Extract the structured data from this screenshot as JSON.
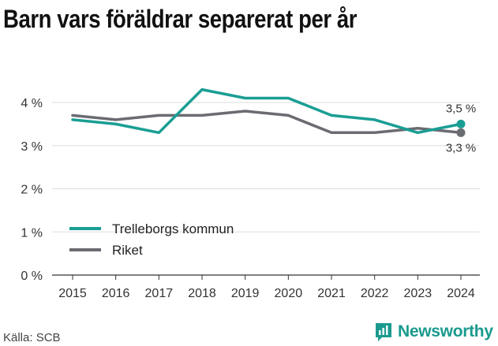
{
  "title": "Barn vars föräldrar separerat per år",
  "source": "Källa: SCB",
  "brand": {
    "name": "Newsworthy",
    "icon": "newsworthy-chart-bubble-icon"
  },
  "colors": {
    "trelleborg": "#1a9e94",
    "riket": "#6b6b72",
    "grid": "#dddddd",
    "brand": "#1a9a8e"
  },
  "chart_data": {
    "type": "line",
    "title": "Barn vars föräldrar separerat per år",
    "xlabel": "",
    "ylabel": "",
    "x": [
      "2015",
      "2016",
      "2017",
      "2018",
      "2019",
      "2020",
      "2021",
      "2022",
      "2023",
      "2024"
    ],
    "ylim": [
      0,
      4
    ],
    "yticks": [
      0,
      1,
      2,
      3,
      4
    ],
    "ytick_labels": [
      "0 %",
      "1 %",
      "2 %",
      "3 %",
      "4 %"
    ],
    "grid": true,
    "legend": "inside-left",
    "series": [
      {
        "name": "Trelleborgs kommun",
        "values": [
          3.6,
          3.5,
          3.3,
          4.3,
          4.1,
          4.1,
          3.7,
          3.6,
          3.3,
          3.5
        ],
        "end_label": "3,5 %"
      },
      {
        "name": "Riket",
        "values": [
          3.7,
          3.6,
          3.7,
          3.7,
          3.8,
          3.7,
          3.3,
          3.3,
          3.4,
          3.3
        ],
        "end_label": "3,3 %"
      }
    ]
  }
}
